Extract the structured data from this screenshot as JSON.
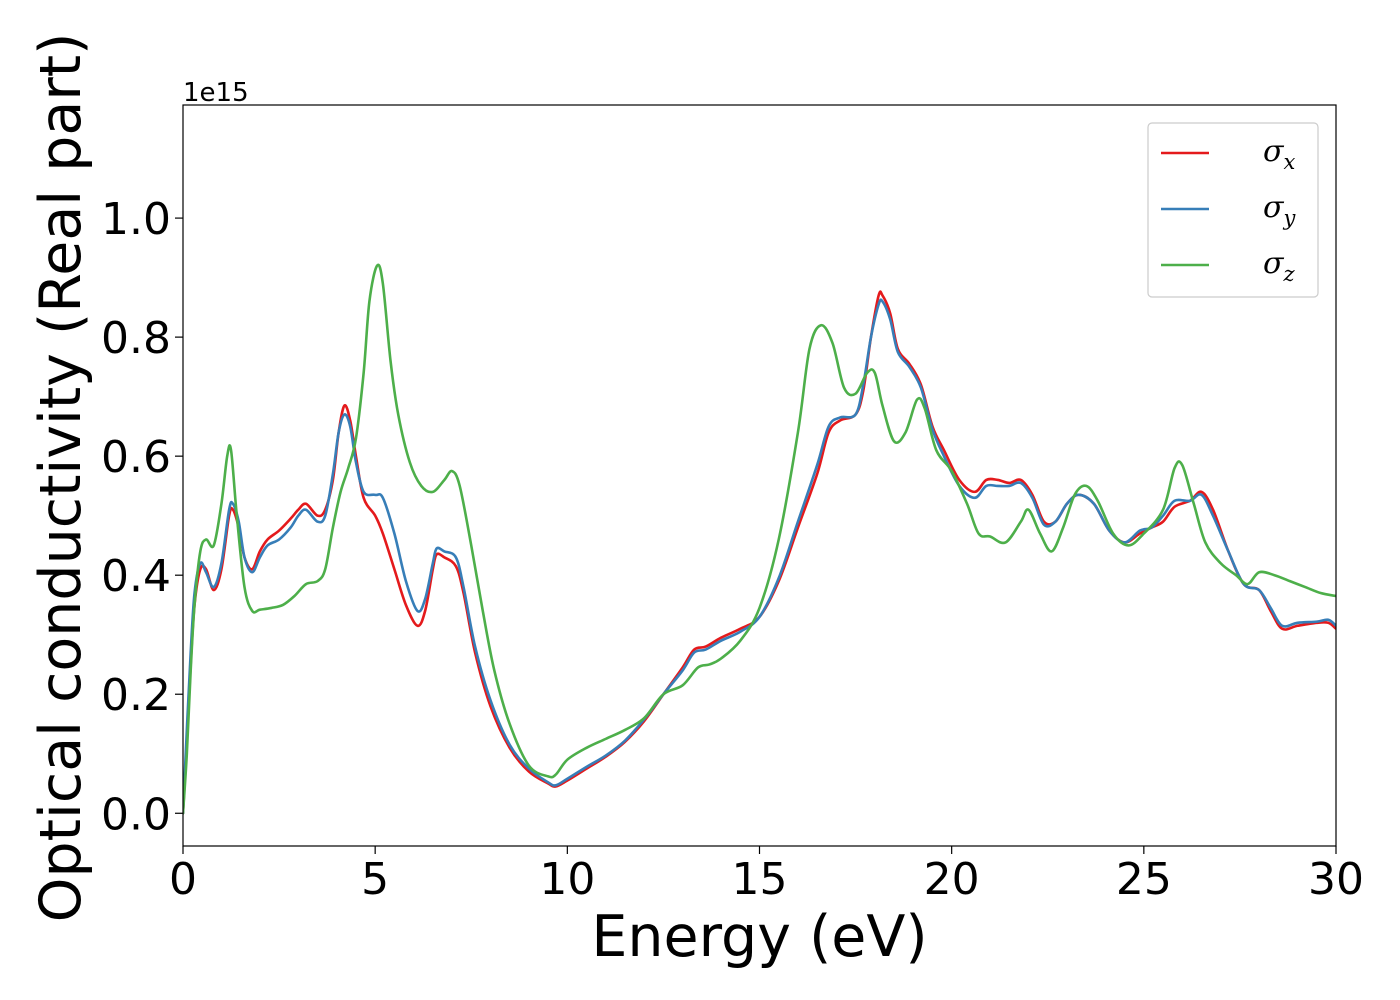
{
  "chart_data": {
    "type": "line",
    "xlabel": "Energy (eV)",
    "ylabel": "Optical conductivity (Real part)",
    "y_offset_text": "1e15",
    "xlim": [
      0,
      30
    ],
    "ylim": [
      -0.055,
      1.19
    ],
    "xticks": [
      0,
      5,
      10,
      15,
      20,
      25,
      30
    ],
    "xtick_labels": [
      "0",
      "5",
      "10",
      "15",
      "20",
      "25",
      "30"
    ],
    "yticks": [
      0.0,
      0.2,
      0.4,
      0.6,
      0.8,
      1.0
    ],
    "ytick_labels": [
      "0.0",
      "0.2",
      "0.4",
      "0.6",
      "0.8",
      "1.0"
    ],
    "grid": false,
    "legend_position": "top-right",
    "series": [
      {
        "name": "σx",
        "symbol": "σ",
        "subscript": "x",
        "color": "#e41a1c",
        "points": [
          [
            0,
            0.0
          ],
          [
            0.1,
            0.12
          ],
          [
            0.2,
            0.25
          ],
          [
            0.3,
            0.35
          ],
          [
            0.45,
            0.41
          ],
          [
            0.6,
            0.41
          ],
          [
            0.8,
            0.375
          ],
          [
            1.0,
            0.41
          ],
          [
            1.2,
            0.5
          ],
          [
            1.3,
            0.51
          ],
          [
            1.45,
            0.48
          ],
          [
            1.6,
            0.43
          ],
          [
            1.8,
            0.41
          ],
          [
            2.0,
            0.44
          ],
          [
            2.2,
            0.46
          ],
          [
            2.5,
            0.475
          ],
          [
            2.8,
            0.495
          ],
          [
            3.0,
            0.51
          ],
          [
            3.2,
            0.52
          ],
          [
            3.5,
            0.5
          ],
          [
            3.7,
            0.51
          ],
          [
            3.9,
            0.56
          ],
          [
            4.05,
            0.64
          ],
          [
            4.2,
            0.685
          ],
          [
            4.35,
            0.66
          ],
          [
            4.5,
            0.6
          ],
          [
            4.7,
            0.53
          ],
          [
            5.0,
            0.5
          ],
          [
            5.2,
            0.47
          ],
          [
            5.5,
            0.41
          ],
          [
            5.8,
            0.35
          ],
          [
            6.1,
            0.315
          ],
          [
            6.3,
            0.34
          ],
          [
            6.5,
            0.41
          ],
          [
            6.6,
            0.435
          ],
          [
            6.8,
            0.43
          ],
          [
            7.1,
            0.415
          ],
          [
            7.3,
            0.37
          ],
          [
            7.6,
            0.27
          ],
          [
            8.0,
            0.18
          ],
          [
            8.5,
            0.11
          ],
          [
            9.0,
            0.07
          ],
          [
            9.5,
            0.05
          ],
          [
            9.7,
            0.045
          ],
          [
            10.0,
            0.055
          ],
          [
            10.5,
            0.075
          ],
          [
            11.0,
            0.095
          ],
          [
            11.5,
            0.12
          ],
          [
            12.0,
            0.155
          ],
          [
            12.5,
            0.2
          ],
          [
            13.0,
            0.245
          ],
          [
            13.3,
            0.275
          ],
          [
            13.6,
            0.28
          ],
          [
            14.0,
            0.295
          ],
          [
            14.5,
            0.31
          ],
          [
            15.0,
            0.33
          ],
          [
            15.5,
            0.39
          ],
          [
            16.0,
            0.48
          ],
          [
            16.5,
            0.57
          ],
          [
            16.8,
            0.64
          ],
          [
            17.1,
            0.66
          ],
          [
            17.5,
            0.67
          ],
          [
            17.7,
            0.71
          ],
          [
            17.9,
            0.8
          ],
          [
            18.1,
            0.87
          ],
          [
            18.2,
            0.87
          ],
          [
            18.4,
            0.84
          ],
          [
            18.6,
            0.78
          ],
          [
            18.9,
            0.755
          ],
          [
            19.2,
            0.72
          ],
          [
            19.5,
            0.65
          ],
          [
            19.8,
            0.61
          ],
          [
            20.2,
            0.56
          ],
          [
            20.6,
            0.54
          ],
          [
            20.9,
            0.56
          ],
          [
            21.2,
            0.56
          ],
          [
            21.5,
            0.555
          ],
          [
            21.8,
            0.56
          ],
          [
            22.1,
            0.535
          ],
          [
            22.4,
            0.49
          ],
          [
            22.7,
            0.49
          ],
          [
            23.0,
            0.52
          ],
          [
            23.3,
            0.535
          ],
          [
            23.7,
            0.52
          ],
          [
            24.1,
            0.475
          ],
          [
            24.5,
            0.455
          ],
          [
            24.9,
            0.47
          ],
          [
            25.2,
            0.48
          ],
          [
            25.5,
            0.49
          ],
          [
            25.8,
            0.515
          ],
          [
            26.2,
            0.525
          ],
          [
            26.5,
            0.54
          ],
          [
            26.8,
            0.51
          ],
          [
            27.2,
            0.44
          ],
          [
            27.6,
            0.385
          ],
          [
            28.0,
            0.375
          ],
          [
            28.3,
            0.34
          ],
          [
            28.6,
            0.31
          ],
          [
            29.0,
            0.315
          ],
          [
            29.5,
            0.32
          ],
          [
            29.8,
            0.32
          ],
          [
            30.0,
            0.31
          ]
        ]
      },
      {
        "name": "σy",
        "symbol": "σ",
        "subscript": "y",
        "color": "#377eb8",
        "points": [
          [
            0,
            0.0
          ],
          [
            0.1,
            0.14
          ],
          [
            0.2,
            0.27
          ],
          [
            0.3,
            0.37
          ],
          [
            0.45,
            0.42
          ],
          [
            0.6,
            0.405
          ],
          [
            0.8,
            0.38
          ],
          [
            1.0,
            0.42
          ],
          [
            1.2,
            0.51
          ],
          [
            1.3,
            0.52
          ],
          [
            1.45,
            0.49
          ],
          [
            1.6,
            0.43
          ],
          [
            1.8,
            0.405
          ],
          [
            2.0,
            0.43
          ],
          [
            2.2,
            0.45
          ],
          [
            2.5,
            0.46
          ],
          [
            2.8,
            0.48
          ],
          [
            3.0,
            0.5
          ],
          [
            3.2,
            0.51
          ],
          [
            3.5,
            0.49
          ],
          [
            3.7,
            0.5
          ],
          [
            3.9,
            0.57
          ],
          [
            4.05,
            0.64
          ],
          [
            4.2,
            0.67
          ],
          [
            4.35,
            0.65
          ],
          [
            4.5,
            0.59
          ],
          [
            4.7,
            0.54
          ],
          [
            5.0,
            0.535
          ],
          [
            5.2,
            0.53
          ],
          [
            5.5,
            0.47
          ],
          [
            5.8,
            0.39
          ],
          [
            6.1,
            0.34
          ],
          [
            6.3,
            0.36
          ],
          [
            6.5,
            0.42
          ],
          [
            6.6,
            0.445
          ],
          [
            6.8,
            0.44
          ],
          [
            7.1,
            0.43
          ],
          [
            7.3,
            0.38
          ],
          [
            7.6,
            0.28
          ],
          [
            8.0,
            0.19
          ],
          [
            8.5,
            0.115
          ],
          [
            9.0,
            0.075
          ],
          [
            9.5,
            0.052
          ],
          [
            9.7,
            0.047
          ],
          [
            10.0,
            0.058
          ],
          [
            10.5,
            0.078
          ],
          [
            11.0,
            0.097
          ],
          [
            11.5,
            0.122
          ],
          [
            12.0,
            0.158
          ],
          [
            12.5,
            0.2
          ],
          [
            13.0,
            0.24
          ],
          [
            13.3,
            0.27
          ],
          [
            13.6,
            0.275
          ],
          [
            14.0,
            0.29
          ],
          [
            14.5,
            0.305
          ],
          [
            15.0,
            0.33
          ],
          [
            15.5,
            0.395
          ],
          [
            16.0,
            0.49
          ],
          [
            16.5,
            0.585
          ],
          [
            16.8,
            0.65
          ],
          [
            17.1,
            0.665
          ],
          [
            17.5,
            0.67
          ],
          [
            17.7,
            0.72
          ],
          [
            17.9,
            0.8
          ],
          [
            18.1,
            0.855
          ],
          [
            18.2,
            0.86
          ],
          [
            18.4,
            0.83
          ],
          [
            18.6,
            0.775
          ],
          [
            18.9,
            0.75
          ],
          [
            19.2,
            0.715
          ],
          [
            19.5,
            0.645
          ],
          [
            19.8,
            0.6
          ],
          [
            20.2,
            0.55
          ],
          [
            20.6,
            0.53
          ],
          [
            20.9,
            0.55
          ],
          [
            21.2,
            0.55
          ],
          [
            21.5,
            0.55
          ],
          [
            21.8,
            0.555
          ],
          [
            22.1,
            0.53
          ],
          [
            22.4,
            0.485
          ],
          [
            22.7,
            0.49
          ],
          [
            23.0,
            0.52
          ],
          [
            23.3,
            0.535
          ],
          [
            23.7,
            0.52
          ],
          [
            24.1,
            0.475
          ],
          [
            24.5,
            0.455
          ],
          [
            24.9,
            0.475
          ],
          [
            25.2,
            0.48
          ],
          [
            25.5,
            0.5
          ],
          [
            25.8,
            0.525
          ],
          [
            26.2,
            0.525
          ],
          [
            26.5,
            0.535
          ],
          [
            26.8,
            0.5
          ],
          [
            27.2,
            0.44
          ],
          [
            27.6,
            0.385
          ],
          [
            28.0,
            0.375
          ],
          [
            28.3,
            0.345
          ],
          [
            28.6,
            0.315
          ],
          [
            29.0,
            0.32
          ],
          [
            29.5,
            0.322
          ],
          [
            29.8,
            0.325
          ],
          [
            30.0,
            0.315
          ]
        ]
      },
      {
        "name": "σz",
        "symbol": "σ",
        "subscript": "z",
        "color": "#4daf4a",
        "points": [
          [
            0,
            0.0
          ],
          [
            0.1,
            0.1
          ],
          [
            0.2,
            0.24
          ],
          [
            0.3,
            0.35
          ],
          [
            0.45,
            0.44
          ],
          [
            0.6,
            0.46
          ],
          [
            0.8,
            0.45
          ],
          [
            1.0,
            0.52
          ],
          [
            1.15,
            0.6
          ],
          [
            1.25,
            0.61
          ],
          [
            1.4,
            0.5
          ],
          [
            1.6,
            0.38
          ],
          [
            1.8,
            0.34
          ],
          [
            2.0,
            0.342
          ],
          [
            2.3,
            0.345
          ],
          [
            2.6,
            0.35
          ],
          [
            2.9,
            0.365
          ],
          [
            3.2,
            0.385
          ],
          [
            3.5,
            0.39
          ],
          [
            3.7,
            0.41
          ],
          [
            3.9,
            0.48
          ],
          [
            4.1,
            0.54
          ],
          [
            4.3,
            0.58
          ],
          [
            4.5,
            0.63
          ],
          [
            4.7,
            0.74
          ],
          [
            4.85,
            0.86
          ],
          [
            5.05,
            0.92
          ],
          [
            5.2,
            0.89
          ],
          [
            5.4,
            0.76
          ],
          [
            5.6,
            0.67
          ],
          [
            5.9,
            0.59
          ],
          [
            6.2,
            0.55
          ],
          [
            6.5,
            0.54
          ],
          [
            6.8,
            0.56
          ],
          [
            7.0,
            0.575
          ],
          [
            7.2,
            0.55
          ],
          [
            7.5,
            0.45
          ],
          [
            7.8,
            0.34
          ],
          [
            8.1,
            0.24
          ],
          [
            8.5,
            0.15
          ],
          [
            9.0,
            0.08
          ],
          [
            9.5,
            0.062
          ],
          [
            9.7,
            0.065
          ],
          [
            10.0,
            0.09
          ],
          [
            10.5,
            0.11
          ],
          [
            11.0,
            0.125
          ],
          [
            11.5,
            0.14
          ],
          [
            12.0,
            0.16
          ],
          [
            12.5,
            0.2
          ],
          [
            13.0,
            0.215
          ],
          [
            13.4,
            0.245
          ],
          [
            13.7,
            0.25
          ],
          [
            14.0,
            0.26
          ],
          [
            14.5,
            0.29
          ],
          [
            15.0,
            0.345
          ],
          [
            15.5,
            0.46
          ],
          [
            16.0,
            0.64
          ],
          [
            16.3,
            0.78
          ],
          [
            16.6,
            0.82
          ],
          [
            16.9,
            0.79
          ],
          [
            17.2,
            0.715
          ],
          [
            17.5,
            0.705
          ],
          [
            17.8,
            0.74
          ],
          [
            18.0,
            0.74
          ],
          [
            18.2,
            0.685
          ],
          [
            18.5,
            0.625
          ],
          [
            18.8,
            0.64
          ],
          [
            19.1,
            0.695
          ],
          [
            19.3,
            0.68
          ],
          [
            19.6,
            0.61
          ],
          [
            20.0,
            0.575
          ],
          [
            20.4,
            0.52
          ],
          [
            20.7,
            0.47
          ],
          [
            21.0,
            0.465
          ],
          [
            21.4,
            0.455
          ],
          [
            21.8,
            0.49
          ],
          [
            22.0,
            0.51
          ],
          [
            22.3,
            0.47
          ],
          [
            22.6,
            0.44
          ],
          [
            22.9,
            0.48
          ],
          [
            23.2,
            0.535
          ],
          [
            23.5,
            0.55
          ],
          [
            23.8,
            0.525
          ],
          [
            24.2,
            0.47
          ],
          [
            24.6,
            0.45
          ],
          [
            25.0,
            0.47
          ],
          [
            25.5,
            0.51
          ],
          [
            25.8,
            0.58
          ],
          [
            26.0,
            0.585
          ],
          [
            26.3,
            0.52
          ],
          [
            26.6,
            0.455
          ],
          [
            27.0,
            0.42
          ],
          [
            27.4,
            0.4
          ],
          [
            27.7,
            0.385
          ],
          [
            28.0,
            0.405
          ],
          [
            28.4,
            0.4
          ],
          [
            28.8,
            0.39
          ],
          [
            29.2,
            0.38
          ],
          [
            29.6,
            0.37
          ],
          [
            30.0,
            0.365
          ]
        ]
      }
    ]
  }
}
